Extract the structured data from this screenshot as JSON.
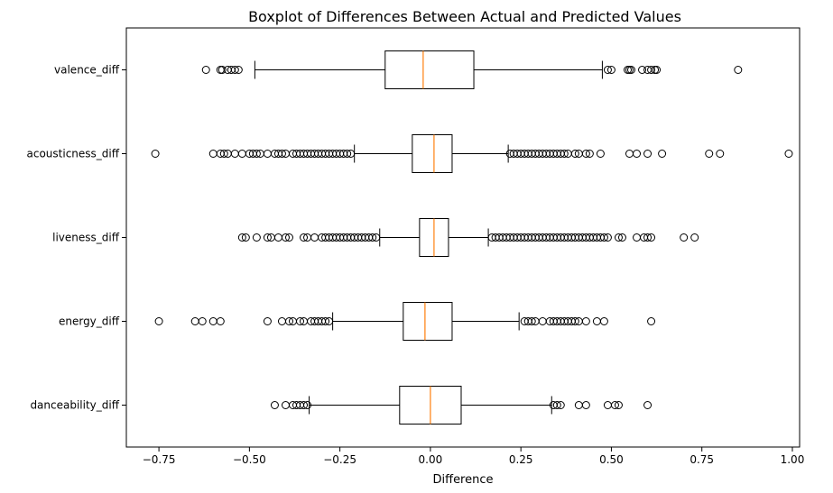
{
  "chart_data": {
    "type": "boxplot",
    "orientation": "horizontal",
    "title": "Boxplot of Differences Between Actual and Predicted Values",
    "xlabel": "Difference",
    "ylabel": "",
    "xlim": [
      -0.84,
      1.02
    ],
    "xticks": [
      -0.75,
      -0.5,
      -0.25,
      0.0,
      0.25,
      0.5,
      0.75,
      1.0
    ],
    "xtick_labels": [
      "−0.75",
      "−0.50",
      "−0.25",
      "0.00",
      "0.25",
      "0.50",
      "0.75",
      "1.00"
    ],
    "grid": false,
    "colors": {
      "box": "#000000",
      "median": "#ff7f0e",
      "outlier_edge": "#000000"
    },
    "categories": [
      "valence_diff",
      "acousticness_diff",
      "liveness_diff",
      "energy_diff",
      "danceability_diff"
    ],
    "series": [
      {
        "category": "valence_diff",
        "whisker_low": -0.485,
        "q1": -0.125,
        "median": -0.02,
        "q3": 0.12,
        "whisker_high": 0.475,
        "outliers": [
          -0.62,
          -0.58,
          -0.575,
          -0.56,
          -0.55,
          -0.54,
          -0.53,
          0.49,
          0.5,
          0.545,
          0.55,
          0.555,
          0.585,
          0.6,
          0.61,
          0.62,
          0.625,
          0.85
        ]
      },
      {
        "category": "acousticness_diff",
        "whisker_low": -0.21,
        "q1": -0.05,
        "median": 0.01,
        "q3": 0.06,
        "whisker_high": 0.215,
        "outliers": [
          -0.76,
          -0.6,
          -0.58,
          -0.57,
          -0.56,
          -0.54,
          -0.52,
          -0.5,
          -0.49,
          -0.48,
          -0.47,
          -0.45,
          -0.43,
          -0.42,
          -0.41,
          -0.4,
          -0.38,
          -0.37,
          -0.36,
          -0.35,
          -0.34,
          -0.33,
          -0.32,
          -0.31,
          -0.3,
          -0.29,
          -0.28,
          -0.27,
          -0.26,
          -0.25,
          -0.24,
          -0.23,
          -0.22,
          0.22,
          0.23,
          0.24,
          0.25,
          0.26,
          0.27,
          0.28,
          0.29,
          0.3,
          0.31,
          0.32,
          0.33,
          0.34,
          0.35,
          0.36,
          0.37,
          0.38,
          0.4,
          0.41,
          0.43,
          0.44,
          0.47,
          0.55,
          0.57,
          0.6,
          0.64,
          0.77,
          0.8,
          0.99
        ]
      },
      {
        "category": "liveness_diff",
        "whisker_low": -0.14,
        "q1": -0.03,
        "median": 0.01,
        "q3": 0.05,
        "whisker_high": 0.16,
        "outliers": [
          -0.52,
          -0.51,
          -0.48,
          -0.45,
          -0.44,
          -0.42,
          -0.4,
          -0.39,
          -0.35,
          -0.34,
          -0.32,
          -0.3,
          -0.29,
          -0.28,
          -0.27,
          -0.26,
          -0.25,
          -0.24,
          -0.23,
          -0.22,
          -0.21,
          -0.2,
          -0.19,
          -0.18,
          -0.17,
          -0.16,
          -0.15,
          0.17,
          0.18,
          0.19,
          0.2,
          0.21,
          0.22,
          0.23,
          0.24,
          0.25,
          0.26,
          0.27,
          0.28,
          0.29,
          0.3,
          0.31,
          0.32,
          0.33,
          0.34,
          0.35,
          0.36,
          0.37,
          0.38,
          0.39,
          0.4,
          0.41,
          0.42,
          0.43,
          0.44,
          0.45,
          0.46,
          0.47,
          0.48,
          0.49,
          0.52,
          0.53,
          0.57,
          0.59,
          0.6,
          0.61,
          0.7,
          0.73
        ]
      },
      {
        "category": "energy_diff",
        "whisker_low": -0.27,
        "q1": -0.075,
        "median": -0.015,
        "q3": 0.06,
        "whisker_high": 0.245,
        "outliers": [
          -0.75,
          -0.65,
          -0.63,
          -0.6,
          -0.58,
          -0.45,
          -0.41,
          -0.39,
          -0.38,
          -0.36,
          -0.35,
          -0.33,
          -0.32,
          -0.31,
          -0.3,
          -0.29,
          -0.28,
          0.26,
          0.27,
          0.28,
          0.29,
          0.31,
          0.33,
          0.34,
          0.35,
          0.36,
          0.37,
          0.38,
          0.39,
          0.4,
          0.41,
          0.43,
          0.46,
          0.48,
          0.61
        ]
      },
      {
        "category": "danceability_diff",
        "whisker_low": -0.335,
        "q1": -0.085,
        "median": 0.0,
        "q3": 0.085,
        "whisker_high": 0.335,
        "outliers": [
          -0.43,
          -0.4,
          -0.38,
          -0.37,
          -0.36,
          -0.35,
          -0.34,
          0.34,
          0.35,
          0.36,
          0.41,
          0.43,
          0.49,
          0.51,
          0.52,
          0.6
        ]
      }
    ]
  }
}
